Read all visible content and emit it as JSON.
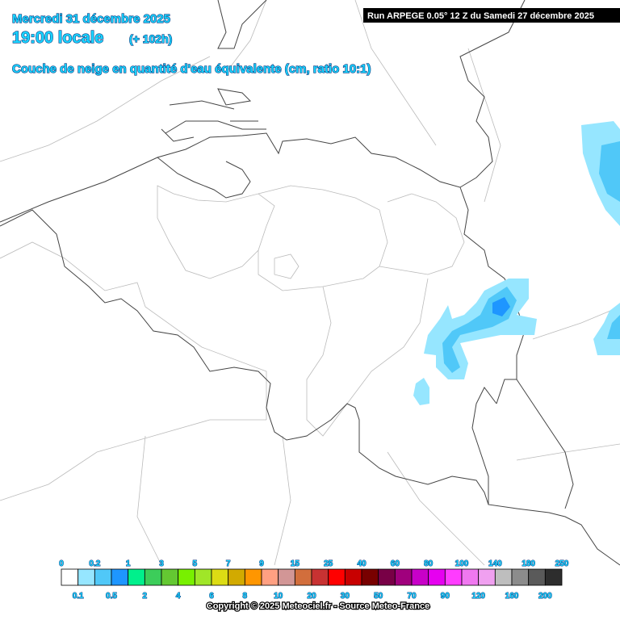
{
  "header": {
    "date": "Mercredi 31 décembre 2025",
    "time": "19:00 locale",
    "lead": "(+ 102h)",
    "field": "Couche de neige en quantité d'eau équivalente (cm, ratio 10:1)",
    "run": "Run ARPEGE 0.05° 12 Z du Samedi 27 décembre 2025"
  },
  "legend": {
    "thresholds": [
      0,
      0.1,
      0.2,
      0.5,
      1,
      2,
      3,
      4,
      5,
      6,
      7,
      8,
      9,
      10,
      15,
      20,
      25,
      30,
      40,
      50,
      60,
      70,
      80,
      90,
      100,
      120,
      140,
      160,
      180,
      200,
      250
    ],
    "colors": [
      "#ffffff",
      "#96e6ff",
      "#50c8f8",
      "#1e96ff",
      "#00f08c",
      "#3ccd5a",
      "#64c832",
      "#78f000",
      "#a0e628",
      "#dcdc14",
      "#d2aa00",
      "#ff9600",
      "#ffa082",
      "#d29696",
      "#d26e3c",
      "#c83232",
      "#ff0000",
      "#c80000",
      "#780000",
      "#780046",
      "#a0007d",
      "#c800c8",
      "#e600f0",
      "#ff3cff",
      "#f078f0",
      "#f0a0f0",
      "#bebebe",
      "#8c8c8c",
      "#5a5a5a",
      "#2d2d2d"
    ]
  },
  "footer": {
    "copyright": "Copyright © 2025 Meteociel.fr - Source Meteo-France"
  }
}
